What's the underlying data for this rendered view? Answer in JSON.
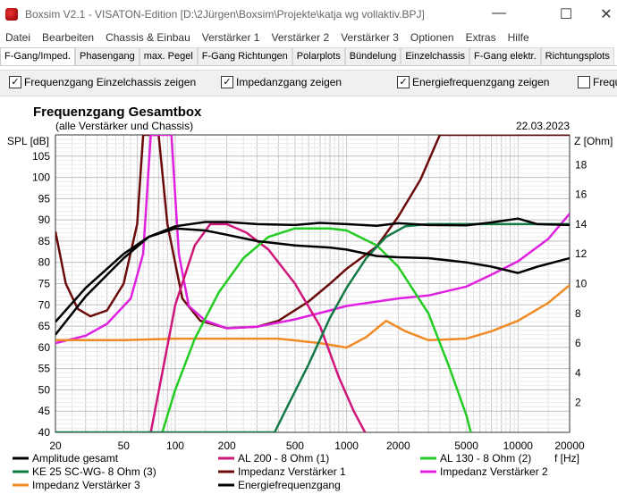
{
  "window": {
    "title": "Boxsim V2.1 - VISATON-Edition [D:\\2Jürgen\\Boxsim\\Projekte\\katja wg vollaktiv.BPJ]",
    "minimize": "—",
    "maximize": "☐",
    "close": "✕"
  },
  "menu": [
    "Datei",
    "Bearbeiten",
    "Chassis & Einbau",
    "Verstärker 1",
    "Verstärker 2",
    "Verstärker 3",
    "Optionen",
    "Extras",
    "Hilfe"
  ],
  "tabs": [
    "F-Gang/Imped.",
    "Phasengang",
    "max. Pegel",
    "F-Gang Richtungen",
    "Polarplots",
    "Bündelung",
    "Einzelchassis",
    "F-Gang elektr.",
    "Richtungsplots"
  ],
  "checkboxes": [
    {
      "label": "Frequenzgang Einzelchassis zeigen",
      "checked": true
    },
    {
      "label": "Impedanzgang zeigen",
      "checked": true
    },
    {
      "label": "Energiefrequenzgang zeigen",
      "checked": true
    },
    {
      "label": "Frequ",
      "checked": false
    }
  ],
  "chart_data": {
    "type": "line",
    "title": "Frequenzgang Gesamtbox",
    "subtitle": "(alle Verstärker und Chassis)",
    "date": "22.03.2023",
    "ylabel": "SPL [dB]",
    "y2label": "Z [Ohm]",
    "xlabel": "f [Hz]",
    "xscale": "log",
    "xlim": [
      20,
      20000
    ],
    "ylim": [
      40,
      110
    ],
    "y2lim": [
      0,
      20
    ],
    "xticks": [
      20,
      50,
      100,
      200,
      500,
      1000,
      2000,
      5000,
      10000,
      20000
    ],
    "yticks": [
      40,
      45,
      50,
      55,
      60,
      65,
      70,
      75,
      80,
      85,
      90,
      95,
      100,
      105
    ],
    "y2ticks": [
      2,
      4,
      6,
      8,
      10,
      12,
      14,
      16,
      18
    ],
    "series": [
      {
        "name": "Amplitude gesamt",
        "axis": "left",
        "color": "#000000",
        "points": [
          [
            20,
            66
          ],
          [
            30,
            74
          ],
          [
            50,
            82
          ],
          [
            70,
            86
          ],
          [
            100,
            88.5
          ],
          [
            150,
            89.5
          ],
          [
            200,
            89.5
          ],
          [
            300,
            89
          ],
          [
            500,
            88.8
          ],
          [
            700,
            89.3
          ],
          [
            1000,
            89
          ],
          [
            1500,
            88.6
          ],
          [
            2000,
            89.2
          ],
          [
            3000,
            88.8
          ],
          [
            5000,
            88.7
          ],
          [
            7000,
            89.4
          ],
          [
            10000,
            90.3
          ],
          [
            13000,
            89
          ],
          [
            20000,
            88.8
          ]
        ]
      },
      {
        "name": "AL 200 - 8 Ohm (1)",
        "axis": "left",
        "color": "#d0157a",
        "points": [
          [
            72,
            40
          ],
          [
            85,
            55
          ],
          [
            100,
            70
          ],
          [
            130,
            84
          ],
          [
            160,
            89
          ],
          [
            200,
            89
          ],
          [
            260,
            87
          ],
          [
            350,
            83
          ],
          [
            500,
            75
          ],
          [
            700,
            65
          ],
          [
            900,
            53
          ],
          [
            1100,
            45
          ],
          [
            1280,
            40
          ]
        ]
      },
      {
        "name": "AL 130 - 8 Ohm (2)",
        "axis": "left",
        "color": "#22cc22",
        "points": [
          [
            84,
            40
          ],
          [
            100,
            50
          ],
          [
            130,
            62
          ],
          [
            180,
            73
          ],
          [
            250,
            81
          ],
          [
            350,
            86
          ],
          [
            500,
            88
          ],
          [
            800,
            88
          ],
          [
            1000,
            87.5
          ],
          [
            1500,
            84
          ],
          [
            2000,
            79
          ],
          [
            3000,
            68
          ],
          [
            4000,
            55
          ],
          [
            5000,
            44
          ],
          [
            5300,
            40
          ]
        ]
      },
      {
        "name": "KE 25 SC-WG- 8 Ohm    (3)",
        "axis": "left",
        "color": "#117a44",
        "points": [
          [
            20,
            40
          ],
          [
            300,
            40
          ],
          [
            380,
            40
          ],
          [
            450,
            46
          ],
          [
            600,
            56
          ],
          [
            800,
            67
          ],
          [
            1000,
            74
          ],
          [
            1300,
            81
          ],
          [
            1700,
            86
          ],
          [
            2200,
            88.5
          ],
          [
            3000,
            89
          ],
          [
            5000,
            89
          ],
          [
            10000,
            89
          ],
          [
            20000,
            89
          ]
        ]
      },
      {
        "name": "Impedanz Verstärker 1",
        "axis": "right",
        "color": "#6b0a0a",
        "points": [
          [
            20,
            13.5
          ],
          [
            23,
            10
          ],
          [
            27,
            8.3
          ],
          [
            32,
            7.8
          ],
          [
            40,
            8.2
          ],
          [
            50,
            10
          ],
          [
            60,
            14
          ],
          [
            65,
            20
          ],
          [
            80,
            20
          ],
          [
            90,
            14
          ],
          [
            110,
            9
          ],
          [
            140,
            7.5
          ],
          [
            200,
            7
          ],
          [
            300,
            7.1
          ],
          [
            400,
            7.5
          ],
          [
            600,
            8.8
          ],
          [
            800,
            10
          ],
          [
            1000,
            11
          ],
          [
            1500,
            12.5
          ],
          [
            2000,
            14.5
          ],
          [
            2700,
            17
          ],
          [
            3500,
            20
          ],
          [
            20000,
            20
          ]
        ]
      },
      {
        "name": "Impedanz Verstärker 2",
        "axis": "right",
        "color": "#e020e0",
        "points": [
          [
            20,
            6
          ],
          [
            30,
            6.5
          ],
          [
            40,
            7.3
          ],
          [
            55,
            9
          ],
          [
            65,
            12
          ],
          [
            72,
            20
          ],
          [
            95,
            20
          ],
          [
            105,
            12
          ],
          [
            120,
            8.5
          ],
          [
            150,
            7.5
          ],
          [
            200,
            7
          ],
          [
            300,
            7.1
          ],
          [
            500,
            7.6
          ],
          [
            800,
            8.2
          ],
          [
            1000,
            8.5
          ],
          [
            2000,
            9
          ],
          [
            3000,
            9.2
          ],
          [
            5000,
            9.8
          ],
          [
            7000,
            10.6
          ],
          [
            10000,
            11.5
          ],
          [
            15000,
            13
          ],
          [
            20000,
            14.7
          ]
        ]
      },
      {
        "name": "Impedanz Verstärker 3",
        "axis": "right",
        "color": "#f08a24",
        "points": [
          [
            20,
            6.2
          ],
          [
            50,
            6.2
          ],
          [
            100,
            6.3
          ],
          [
            200,
            6.3
          ],
          [
            400,
            6.3
          ],
          [
            700,
            6
          ],
          [
            1000,
            5.7
          ],
          [
            1300,
            6.4
          ],
          [
            1700,
            7.5
          ],
          [
            2200,
            6.8
          ],
          [
            3000,
            6.2
          ],
          [
            5000,
            6.3
          ],
          [
            7000,
            6.8
          ],
          [
            10000,
            7.5
          ],
          [
            15000,
            8.7
          ],
          [
            20000,
            9.9
          ]
        ]
      },
      {
        "name": "Energiefrequenzgang",
        "axis": "left",
        "color": "#000000",
        "points": [
          [
            20,
            63
          ],
          [
            30,
            72
          ],
          [
            50,
            81
          ],
          [
            70,
            86
          ],
          [
            100,
            88
          ],
          [
            150,
            87.5
          ],
          [
            200,
            86.5
          ],
          [
            300,
            85
          ],
          [
            500,
            84
          ],
          [
            800,
            83.5
          ],
          [
            1000,
            83
          ],
          [
            1500,
            81.5
          ],
          [
            2000,
            81.2
          ],
          [
            3000,
            81
          ],
          [
            5000,
            80
          ],
          [
            7000,
            79
          ],
          [
            10000,
            77.5
          ],
          [
            13000,
            79
          ],
          [
            20000,
            81
          ]
        ]
      }
    ]
  }
}
